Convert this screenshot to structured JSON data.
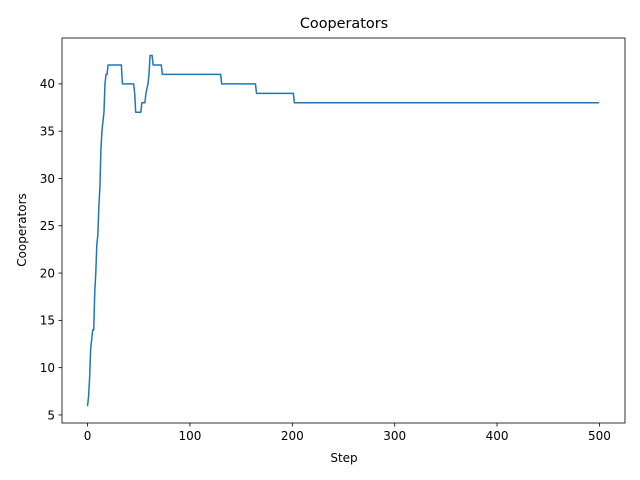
{
  "chart_data": {
    "type": "line",
    "title": "Cooperators",
    "xlabel": "Step",
    "ylabel": "Cooperators",
    "xlim": [
      -25,
      525
    ],
    "ylim": [
      4.15,
      44.85
    ],
    "xticks": [
      0,
      100,
      200,
      300,
      400,
      500
    ],
    "yticks": [
      5,
      10,
      15,
      20,
      25,
      30,
      35,
      40
    ],
    "grid": false,
    "legend": "none",
    "series": [
      {
        "color": "#1f77b4",
        "points": [
          [
            0,
            6
          ],
          [
            1,
            7
          ],
          [
            2,
            9
          ],
          [
            3,
            12
          ],
          [
            4,
            13
          ],
          [
            5,
            14
          ],
          [
            6,
            14
          ],
          [
            7,
            18
          ],
          [
            8,
            20
          ],
          [
            9,
            23
          ],
          [
            10,
            24
          ],
          [
            11,
            27
          ],
          [
            12,
            29
          ],
          [
            13,
            33
          ],
          [
            14,
            35
          ],
          [
            15,
            36
          ],
          [
            16,
            37
          ],
          [
            17,
            40
          ],
          [
            18,
            41
          ],
          [
            19,
            41
          ],
          [
            20,
            42
          ],
          [
            33,
            42
          ],
          [
            34,
            40
          ],
          [
            45,
            40
          ],
          [
            46,
            39
          ],
          [
            47,
            37
          ],
          [
            52,
            37
          ],
          [
            53,
            38
          ],
          [
            56,
            38
          ],
          [
            57,
            39
          ],
          [
            59,
            40
          ],
          [
            60,
            41
          ],
          [
            61,
            43
          ],
          [
            63,
            43
          ],
          [
            64,
            42
          ],
          [
            72,
            42
          ],
          [
            73,
            41
          ],
          [
            130,
            41
          ],
          [
            131,
            40
          ],
          [
            164,
            40
          ],
          [
            165,
            39
          ],
          [
            201,
            39
          ],
          [
            202,
            38
          ],
          [
            499,
            38
          ]
        ]
      }
    ]
  }
}
